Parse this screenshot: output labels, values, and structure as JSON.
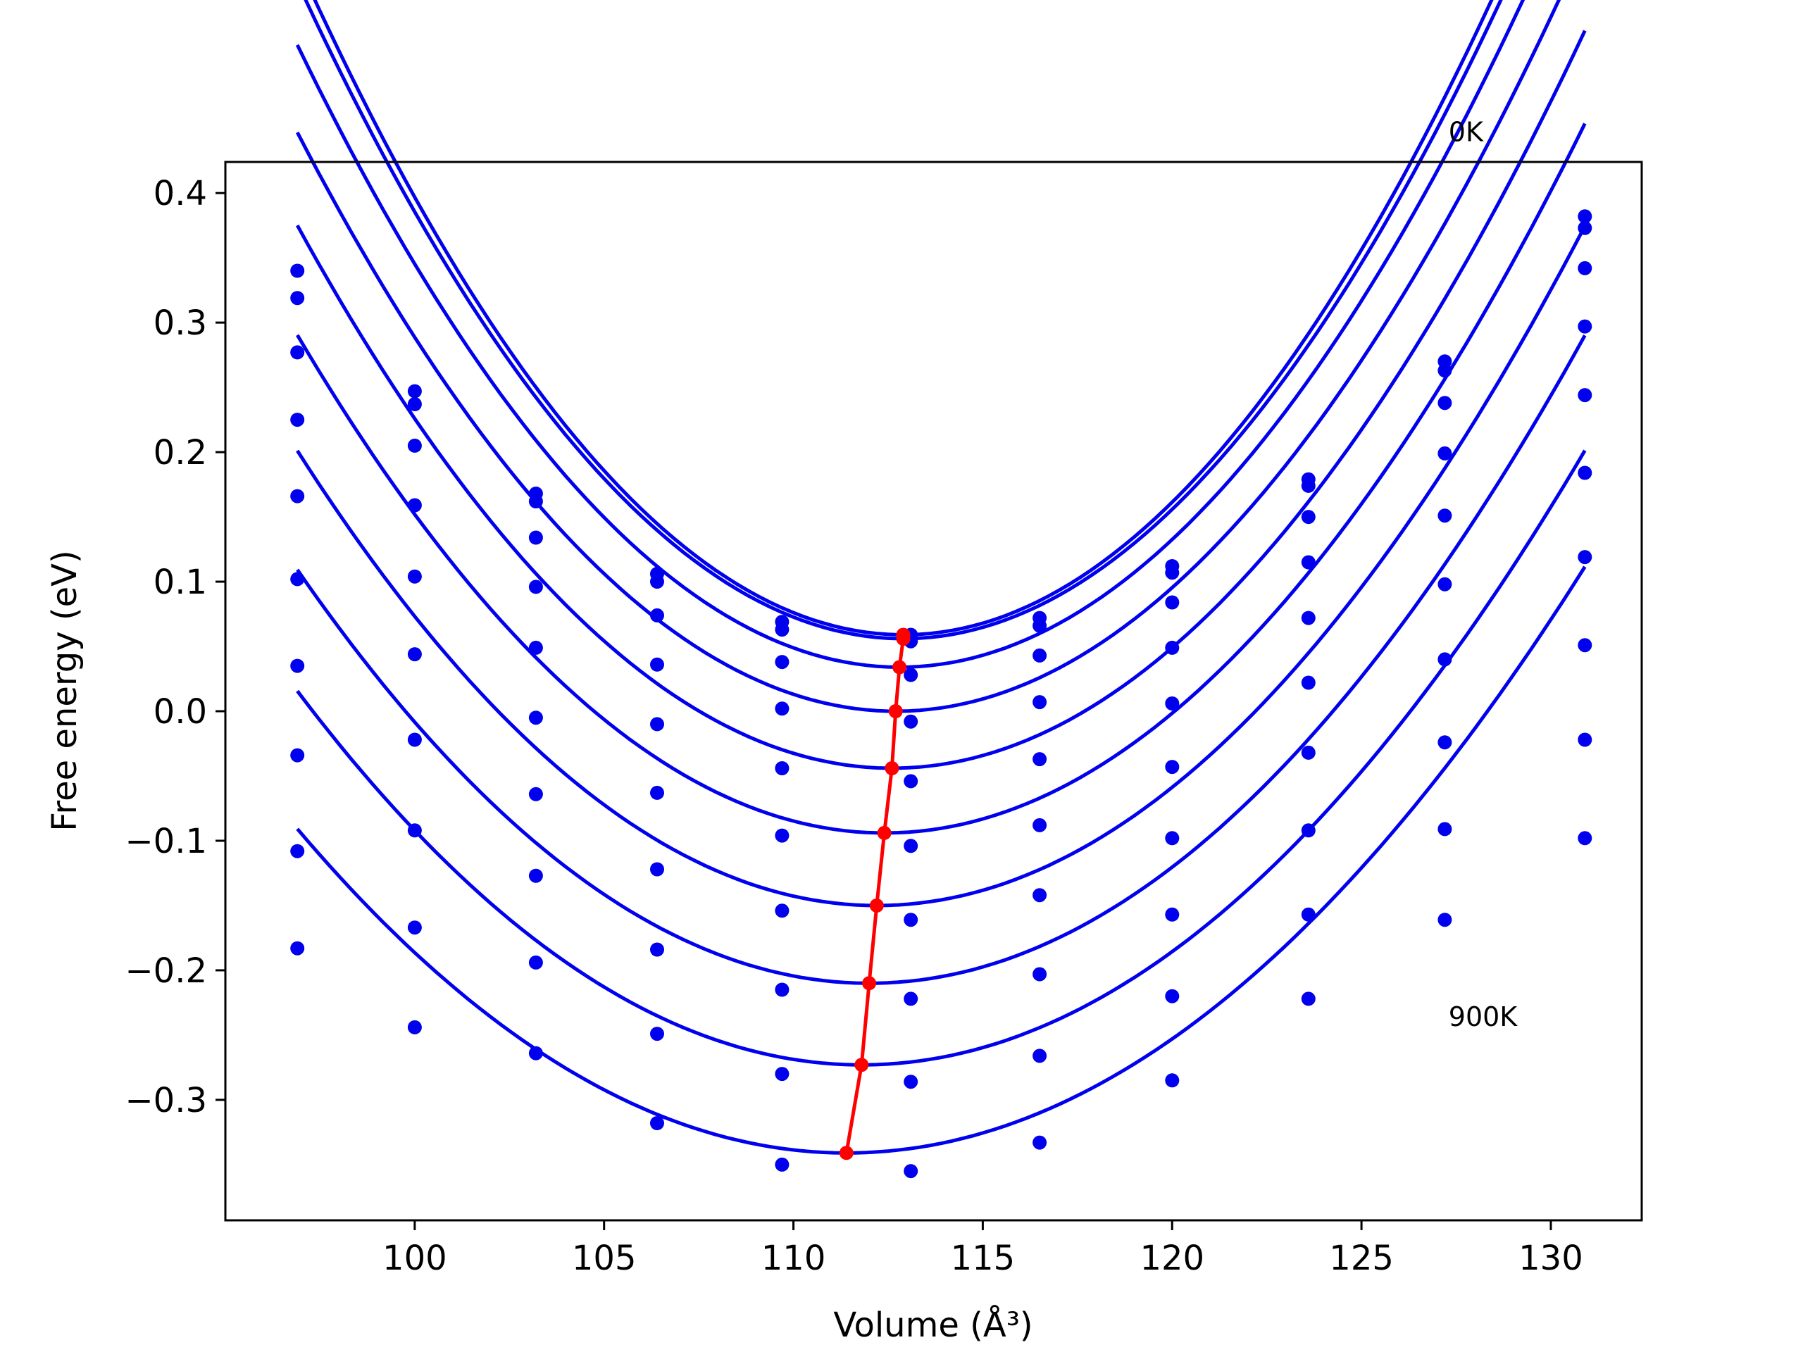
{
  "chart_data": {
    "type": "scatter",
    "xlabel": "Volume (Å³)",
    "ylabel": "Free energy (eV)",
    "xlim": [
      95.0,
      132.4
    ],
    "ylim": [
      -0.393,
      0.424
    ],
    "x_ticks": [
      100,
      105,
      110,
      115,
      120,
      125,
      130
    ],
    "y_ticks": [
      -0.3,
      -0.2,
      -0.1,
      0.0,
      0.1,
      0.2,
      0.3,
      0.4
    ],
    "x_tick_labels": [
      "100",
      "105",
      "110",
      "115",
      "120",
      "125",
      "130"
    ],
    "y_tick_labels": [
      "−0.3",
      "−0.2",
      "−0.1",
      "0.0",
      "0.1",
      "0.2",
      "0.3",
      "0.4"
    ],
    "grid": false,
    "legend": "none",
    "annotations": [
      {
        "text": "0K",
        "x": 127.3,
        "y": 0.44
      },
      {
        "text": "900K",
        "x": 127.3,
        "y": -0.243
      }
    ],
    "colors": {
      "points_and_fits": "#0000ee",
      "minimum_path": "#ff0000"
    },
    "volumes": [
      96.9,
      100.0,
      103.2,
      106.4,
      109.7,
      113.1,
      116.5,
      120.0,
      123.6,
      127.2,
      130.9
    ],
    "series": [
      {
        "values": [
          0.34,
          0.247,
          0.168,
          0.106,
          0.069,
          0.059,
          0.072,
          0.112,
          0.179,
          0.27,
          0.382
        ],
        "fit": {
          "a": 0.00203,
          "v0": 112.9,
          "e0": 0.059
        },
        "minimum": [
          112.9,
          0.059
        ]
      },
      {
        "values": [
          0.319,
          0.237,
          0.162,
          0.1,
          0.063,
          0.054,
          0.066,
          0.107,
          0.174,
          0.263,
          0.373
        ],
        "fit": {
          "a": 0.00198,
          "v0": 112.9,
          "e0": 0.056
        },
        "minimum": [
          112.9,
          0.056
        ]
      },
      {
        "values": [
          0.277,
          0.205,
          0.134,
          0.074,
          0.038,
          0.028,
          0.043,
          0.084,
          0.15,
          0.238,
          0.342
        ],
        "fit": {
          "a": 0.0019,
          "v0": 112.8,
          "e0": 0.034
        },
        "minimum": [
          112.8,
          0.034
        ]
      },
      {
        "values": [
          0.225,
          0.159,
          0.096,
          0.036,
          0.002,
          -0.008,
          0.007,
          0.049,
          0.115,
          0.199,
          0.297
        ],
        "fit": {
          "a": 0.00179,
          "v0": 112.7,
          "e0": 0.0
        },
        "minimum": [
          112.7,
          0.0
        ]
      },
      {
        "values": [
          0.166,
          0.104,
          0.049,
          -0.01,
          -0.044,
          -0.054,
          -0.037,
          0.006,
          0.072,
          0.151,
          0.244
        ],
        "fit": {
          "a": 0.0017,
          "v0": 112.6,
          "e0": -0.044
        },
        "minimum": [
          112.6,
          -0.044
        ]
      },
      {
        "values": [
          0.102,
          0.044,
          -0.005,
          -0.063,
          -0.096,
          -0.104,
          -0.088,
          -0.043,
          0.022,
          0.098,
          0.184
        ],
        "fit": {
          "a": 0.0016,
          "v0": 112.4,
          "e0": -0.094
        },
        "minimum": [
          112.4,
          -0.094
        ]
      },
      {
        "values": [
          0.035,
          -0.022,
          -0.064,
          -0.122,
          -0.154,
          -0.161,
          -0.142,
          -0.098,
          -0.032,
          0.04,
          0.119
        ],
        "fit": {
          "a": 0.0015,
          "v0": 112.2,
          "e0": -0.15
        },
        "minimum": [
          112.2,
          -0.15
        ]
      },
      {
        "values": [
          -0.034,
          -0.092,
          -0.127,
          -0.184,
          -0.215,
          -0.222,
          -0.203,
          -0.157,
          -0.092,
          -0.024,
          0.051
        ],
        "fit": {
          "a": 0.0014,
          "v0": 112.0,
          "e0": -0.21
        },
        "minimum": [
          112.0,
          -0.21
        ]
      },
      {
        "values": [
          -0.108,
          -0.167,
          -0.194,
          -0.249,
          -0.28,
          -0.286,
          -0.266,
          -0.22,
          -0.157,
          -0.091,
          -0.022
        ],
        "fit": {
          "a": 0.0013,
          "v0": 111.8,
          "e0": -0.273
        },
        "minimum": [
          111.8,
          -0.273
        ]
      },
      {
        "values": [
          -0.183,
          -0.244,
          -0.264,
          -0.318,
          -0.35,
          -0.355,
          -0.333,
          -0.285,
          -0.222,
          -0.161,
          -0.098
        ],
        "fit": {
          "a": 0.00119,
          "v0": 111.4,
          "e0": -0.341
        },
        "minimum": [
          111.4,
          -0.341
        ]
      }
    ]
  }
}
